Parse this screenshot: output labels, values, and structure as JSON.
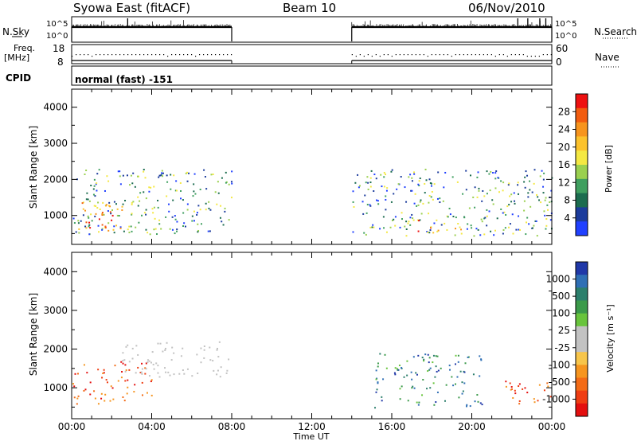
{
  "header": {
    "title": "Syowa East (fitACF)",
    "beam": "Beam 10",
    "date": "06/Nov/2010"
  },
  "top_panels": {
    "nsky_label": "N.Sky",
    "nsearch_label": "N.Search",
    "scale_hi": "10^5",
    "scale_lo": "10^0",
    "freq_label_1": "Freq.",
    "freq_label_2": "[MHz]",
    "freq_ticks": [
      "18",
      "8"
    ],
    "nave_label": "Nave",
    "nave_ticks": [
      "60",
      "0"
    ],
    "cpid_label": "CPID",
    "cpid_text": "normal (fast) -151"
  },
  "axes": {
    "ylabel": "Slant Range [km]",
    "xlabel": "Time UT",
    "yticks": [
      "4000",
      "3000",
      "2000",
      "1000"
    ],
    "xticks": [
      "00:00",
      "04:00",
      "08:00",
      "12:00",
      "16:00",
      "20:00",
      "00:00"
    ]
  },
  "colorbars": {
    "power": {
      "label": "Power [dB]",
      "ticks": [
        "28",
        "24",
        "20",
        "16",
        "12",
        "8",
        "4"
      ],
      "colors": [
        "#ee1111",
        "#f25c0f",
        "#f7941d",
        "#fcc22c",
        "#f4e842",
        "#9ad04f",
        "#3f9f5f",
        "#1c6c4f",
        "#1c3c9c",
        "#2040ff"
      ]
    },
    "velocity": {
      "label": "Velocity [m s⁻¹]",
      "ticks": [
        "1000",
        "500",
        "100",
        "25",
        "-25",
        "-100",
        "-500",
        "-1000"
      ],
      "colors": [
        "#2038a8",
        "#2f6fb5",
        "#2c7f6c",
        "#3b9a4a",
        "#68c43c",
        "#c2c2c2",
        "#c2c2c2",
        "#f7c54a",
        "#f6951f",
        "#f36b16",
        "#ef3d12",
        "#e40f0f"
      ]
    }
  },
  "chart_data": {
    "type": "heatmap",
    "x_unit": "hours UT",
    "xlim": [
      0,
      24
    ],
    "ylim": [
      200,
      4500
    ],
    "data_gaps": [
      [
        8.0,
        14.0
      ]
    ],
    "power_features": [
      {
        "t0": 0.0,
        "t1": 8.0,
        "r0": 500,
        "r1": 2300,
        "level": "mixed"
      },
      {
        "t0": 0.3,
        "t1": 2.5,
        "r0": 600,
        "r1": 1500,
        "level": "high"
      },
      {
        "t0": 14.0,
        "t1": 24.0,
        "r0": 450,
        "r1": 2300,
        "level": "mixed"
      },
      {
        "t0": 16.8,
        "t1": 19.5,
        "r0": 500,
        "r1": 900,
        "level": "high"
      }
    ],
    "velocity_features": [
      {
        "t0": 0.0,
        "t1": 4.0,
        "r0": 600,
        "r1": 1700,
        "sign": "negative"
      },
      {
        "t0": 2.5,
        "t1": 8.0,
        "r0": 1300,
        "r1": 2200,
        "sign": "near-zero"
      },
      {
        "t0": 15.0,
        "t1": 20.5,
        "r0": 500,
        "r1": 1900,
        "sign": "positive"
      },
      {
        "t0": 21.5,
        "t1": 24.0,
        "r0": 600,
        "r1": 1200,
        "sign": "negative"
      }
    ]
  }
}
